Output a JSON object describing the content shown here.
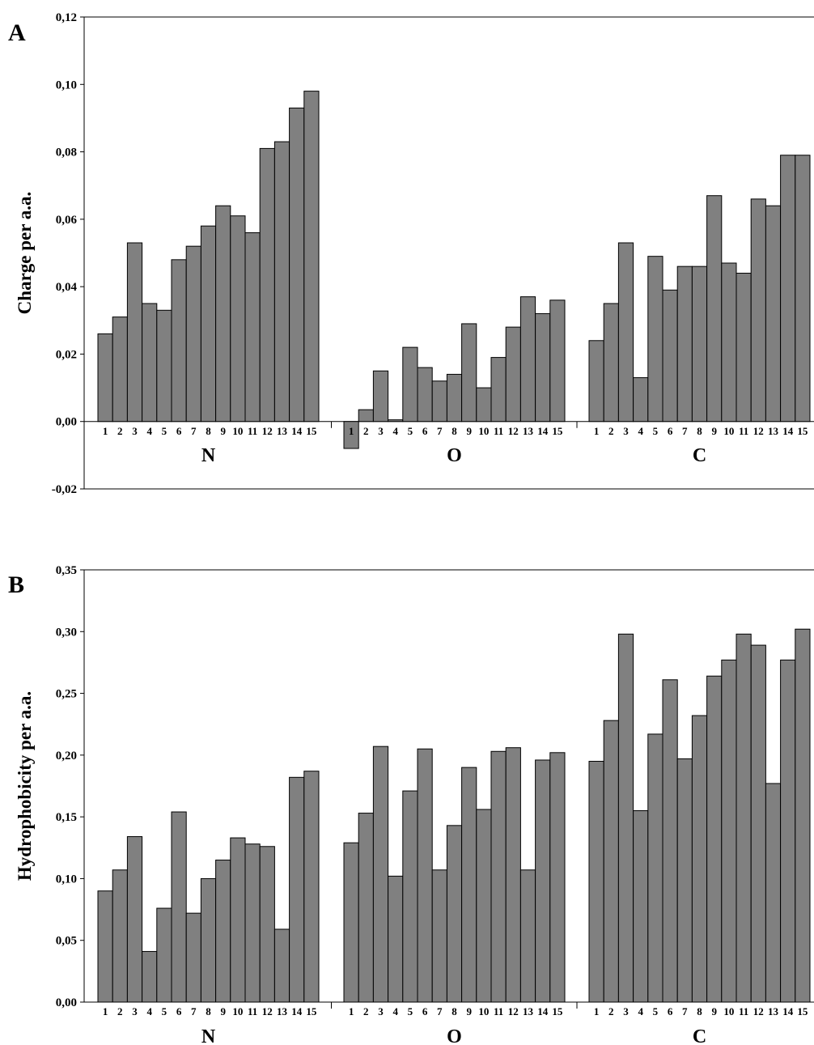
{
  "chart_data": [
    {
      "panel": "A",
      "type": "bar",
      "ylabel": "Charge per a.a.",
      "ylim": [
        -0.02,
        0.12
      ],
      "yticks": [
        "-0,02",
        "0,00",
        "0,02",
        "0,04",
        "0,06",
        "0,08",
        "0,10",
        "0,12"
      ],
      "grid": false,
      "groups": [
        {
          "label": "N",
          "categories": [
            "1",
            "2",
            "3",
            "4",
            "5",
            "6",
            "7",
            "8",
            "9",
            "10",
            "11",
            "12",
            "13",
            "14",
            "15"
          ],
          "values": [
            0.026,
            0.031,
            0.053,
            0.035,
            0.033,
            0.048,
            0.052,
            0.058,
            0.064,
            0.061,
            0.056,
            0.081,
            0.083,
            0.093,
            0.098
          ]
        },
        {
          "label": "O",
          "categories": [
            "1",
            "2",
            "3",
            "4",
            "5",
            "6",
            "7",
            "8",
            "9",
            "10",
            "11",
            "12",
            "13",
            "14",
            "15"
          ],
          "values": [
            -0.008,
            0.0035,
            0.015,
            0.0005,
            0.022,
            0.016,
            0.012,
            0.014,
            0.029,
            0.01,
            0.019,
            0.028,
            0.037,
            0.032,
            0.036
          ]
        },
        {
          "label": "C",
          "categories": [
            "1",
            "2",
            "3",
            "4",
            "5",
            "6",
            "7",
            "8",
            "9",
            "10",
            "11",
            "12",
            "13",
            "14",
            "15"
          ],
          "values": [
            0.024,
            0.035,
            0.053,
            0.013,
            0.049,
            0.039,
            0.046,
            0.046,
            0.067,
            0.047,
            0.044,
            0.066,
            0.064,
            0.079,
            0.079
          ]
        }
      ]
    },
    {
      "panel": "B",
      "type": "bar",
      "ylabel": "Hydrophobicity per a.a.",
      "ylim": [
        0,
        0.35
      ],
      "yticks": [
        "0,00",
        "0,05",
        "0,10",
        "0,15",
        "0,20",
        "0,25",
        "0,30",
        "0,35"
      ],
      "grid": false,
      "groups": [
        {
          "label": "N",
          "categories": [
            "1",
            "2",
            "3",
            "4",
            "5",
            "6",
            "7",
            "8",
            "9",
            "10",
            "11",
            "12",
            "13",
            "14",
            "15"
          ],
          "values": [
            0.09,
            0.107,
            0.134,
            0.041,
            0.076,
            0.154,
            0.072,
            0.1,
            0.115,
            0.133,
            0.128,
            0.126,
            0.059,
            0.182,
            0.187
          ]
        },
        {
          "label": "O",
          "categories": [
            "1",
            "2",
            "3",
            "4",
            "5",
            "6",
            "7",
            "8",
            "9",
            "10",
            "11",
            "12",
            "13",
            "14",
            "15"
          ],
          "values": [
            0.129,
            0.153,
            0.207,
            0.102,
            0.171,
            0.205,
            0.107,
            0.143,
            0.19,
            0.156,
            0.203,
            0.206,
            0.107,
            0.196,
            0.202
          ]
        },
        {
          "label": "C",
          "categories": [
            "1",
            "2",
            "3",
            "4",
            "5",
            "6",
            "7",
            "8",
            "9",
            "10",
            "11",
            "12",
            "13",
            "14",
            "15"
          ],
          "values": [
            0.195,
            0.228,
            0.298,
            0.155,
            0.217,
            0.261,
            0.197,
            0.232,
            0.264,
            0.277,
            0.298,
            0.289,
            0.177,
            0.277,
            0.302
          ]
        }
      ]
    }
  ]
}
